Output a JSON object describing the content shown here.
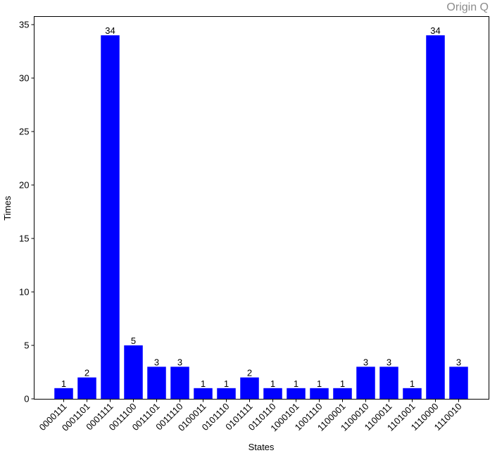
{
  "brand": "Origin Q",
  "chart_data": {
    "type": "bar",
    "categories": [
      "0000111",
      "0001101",
      "0001111",
      "0011100",
      "0011101",
      "0011110",
      "0100011",
      "0101110",
      "0101111",
      "0110110",
      "1000101",
      "1001110",
      "1100001",
      "1100010",
      "1100011",
      "1101001",
      "1110000",
      "1110010"
    ],
    "values": [
      1,
      2,
      34,
      5,
      3,
      3,
      1,
      1,
      2,
      1,
      1,
      1,
      1,
      3,
      3,
      1,
      34,
      3
    ],
    "xlabel": "States",
    "ylabel": "Times",
    "ylim": [
      0,
      36
    ],
    "yticks": [
      0,
      5,
      10,
      15,
      20,
      25,
      30,
      35
    ],
    "bar_color": "#0000ff",
    "data_labels": true,
    "grid": false
  }
}
